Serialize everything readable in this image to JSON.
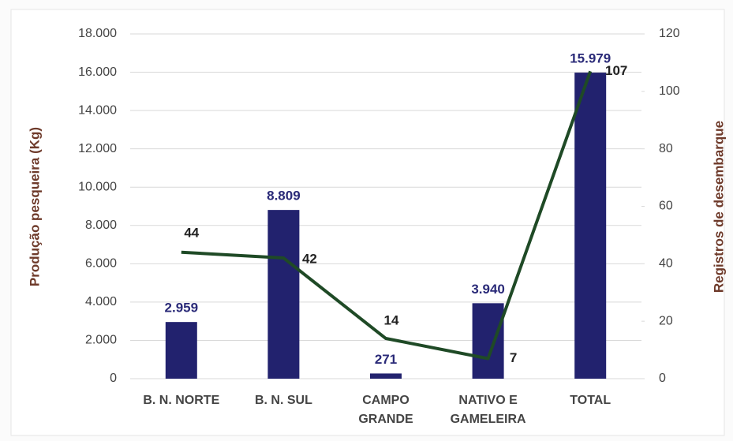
{
  "chart_data": {
    "type": "bar",
    "categories": [
      "B. N. NORTE",
      "B. N. SUL",
      "CAMPO GRANDE",
      "NATIVO E GAMELEIRA",
      "TOTAL"
    ],
    "series": [
      {
        "type": "bar",
        "color": "#22226e",
        "values": [
          2959,
          8809,
          271,
          3940,
          15979
        ],
        "value_labels": [
          "2.959",
          "8.809",
          "271",
          "3.940",
          "15.979"
        ]
      },
      {
        "type": "line",
        "axis": "y2",
        "color": "#1f4a26",
        "values": [
          44,
          42,
          14,
          7,
          107
        ]
      }
    ],
    "ylabel": "Produção pesqueira (Kg)",
    "y2label": "Registros de desembarque",
    "ylim": [
      0,
      18000
    ],
    "yticks": [
      0,
      {
        "value": 2000,
        "label": "2.000"
      },
      {
        "value": 4000,
        "label": "4.000"
      },
      {
        "value": 6000,
        "label": "6.000"
      },
      {
        "value": 8000,
        "label": "8.000"
      },
      {
        "value": 10000,
        "label": "10.000"
      },
      {
        "value": 12000,
        "label": "12.000"
      },
      {
        "value": 14000,
        "label": "14.000"
      },
      {
        "value": 16000,
        "label": "16.000"
      },
      {
        "value": 18000,
        "label": "18.000"
      }
    ],
    "y2lim": [
      0,
      120
    ],
    "y2ticks": [
      0,
      20,
      40,
      60,
      80,
      100,
      120
    ],
    "grid": true
  }
}
